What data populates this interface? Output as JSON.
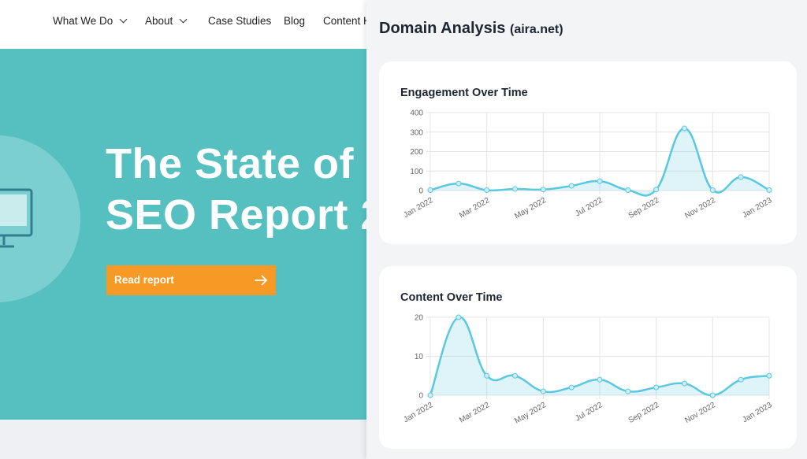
{
  "nav": {
    "items": [
      "What We Do",
      "About",
      "Case Studies",
      "Blog",
      "Content H"
    ]
  },
  "hero": {
    "title_lines": [
      "The State of",
      "SEO Report 2"
    ],
    "button": "Read report"
  },
  "panel": {
    "title": "Domain Analysis",
    "domain": "(aira.net)"
  },
  "chart_data": [
    {
      "type": "line",
      "title": "Engagement Over Time",
      "categories": [
        "Jan 2022",
        null,
        "Mar 2022",
        null,
        "May 2022",
        null,
        "Jul 2022",
        null,
        "Sep 2022",
        null,
        "Nov 2022",
        null,
        "Jan 2023"
      ],
      "values": [
        2,
        36,
        2,
        8,
        5,
        24,
        48,
        2,
        5,
        319,
        2,
        69,
        2
      ],
      "color": "#5ac8e0",
      "fill": true,
      "grid": true,
      "ylim": [
        0,
        400
      ],
      "yticks": [
        0,
        100,
        200,
        300,
        400
      ]
    },
    {
      "type": "line",
      "title": "Content Over Time",
      "categories": [
        "Jan 2022",
        null,
        "Mar 2022",
        null,
        "May 2022",
        null,
        "Jul 2022",
        null,
        "Sep 2022",
        null,
        "Nov 2022",
        null,
        "Jan 2023"
      ],
      "values": [
        0,
        20,
        5,
        5,
        1,
        2,
        4,
        1,
        2,
        3,
        0,
        4,
        5
      ],
      "color": "#5ac8e0",
      "fill": true,
      "grid": true,
      "ylim": [
        0,
        20
      ],
      "yticks": [
        0,
        10,
        20
      ]
    }
  ]
}
